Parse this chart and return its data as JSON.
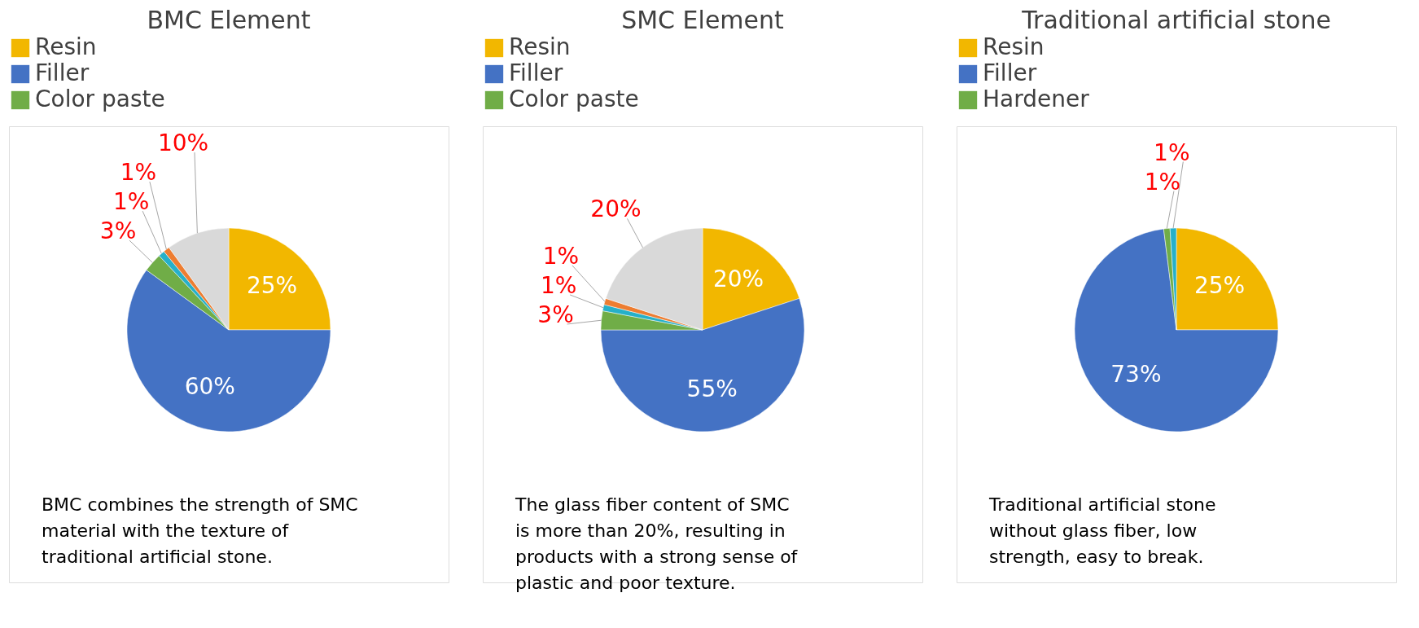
{
  "chart_data": [
    {
      "type": "pie",
      "title": "BMC Element",
      "legend": "top",
      "categories": [
        "Resin",
        "Filler",
        "Color paste",
        null,
        null,
        null
      ],
      "values": [
        25,
        60,
        3,
        1,
        1,
        10
      ],
      "colors": [
        "#f2b700",
        "#4472c4",
        "#70ad47",
        "#26b0c9",
        "#ed7d31",
        "#d9d9d9"
      ],
      "value_labels": [
        "25%",
        "60%",
        "3%",
        "1%",
        "1%",
        "10%"
      ],
      "annotations": [
        "BMC combines the strength of SMC material with the texture of traditional artificial stone."
      ]
    },
    {
      "type": "pie",
      "title": "SMC Element",
      "legend": "top",
      "categories": [
        "Resin",
        "Filler",
        "Color paste",
        null,
        null,
        null
      ],
      "values": [
        20,
        55,
        3,
        1,
        1,
        20
      ],
      "colors": [
        "#f2b700",
        "#4472c4",
        "#70ad47",
        "#26b0c9",
        "#ed7d31",
        "#d9d9d9"
      ],
      "value_labels": [
        "20%",
        "55%",
        "3%",
        "1%",
        "1%",
        "20%"
      ],
      "annotations": [
        "The glass fiber content of SMC is more than 20%, resulting in products with a strong sense of plastic and poor texture."
      ]
    },
    {
      "type": "pie",
      "title": "Traditional artificial stone",
      "legend": "top",
      "categories": [
        "Resin",
        "Filler",
        "Hardener",
        null
      ],
      "values": [
        25,
        73,
        1,
        1
      ],
      "colors": [
        "#f2b700",
        "#4472c4",
        "#70ad47",
        "#26b0c9"
      ],
      "value_labels": [
        "25%",
        "73%",
        "1%",
        "1%"
      ],
      "annotations": [
        "Traditional artificial stone without glass fiber, low strength, easy to break."
      ]
    }
  ]
}
